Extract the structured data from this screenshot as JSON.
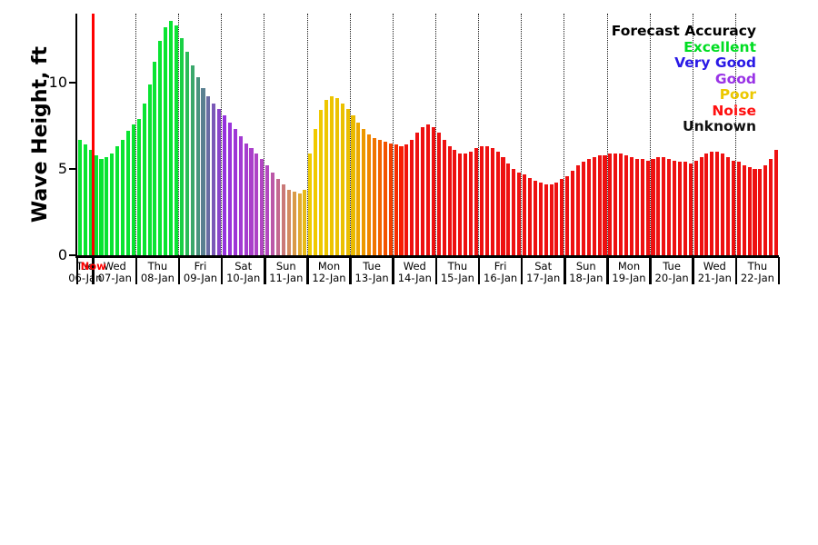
{
  "page": {
    "background": "#ffffff"
  },
  "chart_data": {
    "type": "bar",
    "title": "",
    "ylabel": "Wave Height, ft",
    "ylim": [
      0,
      14
    ],
    "yticks": [
      0,
      5,
      10
    ],
    "interval_hours": 3,
    "grid": {
      "day_separators": "dotted"
    },
    "now_line": {
      "label": "Now",
      "color": "#ff0000",
      "after_day_index": 0
    },
    "legend": {
      "title": "Forecast Accuracy",
      "position": "top-right",
      "title_color": "#000000",
      "entries": [
        {
          "label": "Excellent",
          "color": "#00dd22"
        },
        {
          "label": "Very Good",
          "color": "#2a1ae6"
        },
        {
          "label": "Good",
          "color": "#9933e6"
        },
        {
          "label": "Poor",
          "color": "#ecc800"
        },
        {
          "label": "Noise",
          "color": "#ff0f0f"
        },
        {
          "label": "Unknown",
          "color": "#111111"
        }
      ]
    },
    "days": [
      {
        "day": "Tue",
        "date": "06-Jan",
        "values": [
          6.7,
          6.4,
          6.1
        ],
        "colors": [
          "#0ae432",
          "#0ae432",
          "#0ae432"
        ]
      },
      {
        "day": "Wed",
        "date": "07-Jan",
        "values": [
          5.8,
          5.6,
          5.7,
          5.9,
          6.3,
          6.7,
          7.2,
          7.6
        ],
        "colors": [
          "#0ae432",
          "#0ae432",
          "#0ae432",
          "#0ae432",
          "#0ae432",
          "#0ae432",
          "#0ae432",
          "#0ae432"
        ]
      },
      {
        "day": "Thu",
        "date": "08-Jan",
        "values": [
          7.9,
          8.8,
          9.9,
          11.2,
          12.4,
          13.2,
          13.6,
          13.3
        ],
        "colors": [
          "#0ae432",
          "#0ae432",
          "#0ae432",
          "#0ae432",
          "#0ae432",
          "#0ae432",
          "#0ae432",
          "#0ae432"
        ]
      },
      {
        "day": "Fri",
        "date": "09-Jan",
        "values": [
          12.6,
          11.8,
          11.0,
          10.3,
          9.7,
          9.2,
          8.8,
          8.5
        ],
        "colors": [
          "#1ad045",
          "#2abc58",
          "#3aa86b",
          "#4a947e",
          "#5a8091",
          "#6a6ca4",
          "#7a58b7",
          "#8a44ca"
        ]
      },
      {
        "day": "Sat",
        "date": "10-Jan",
        "values": [
          8.1,
          7.7,
          7.3,
          6.9,
          6.5,
          6.2,
          5.9,
          5.6
        ],
        "colors": [
          "#9632dd",
          "#9a34da",
          "#9e37d6",
          "#a23ad2",
          "#a63dce",
          "#aa40ca",
          "#ae43c6",
          "#b246c2"
        ]
      },
      {
        "day": "Sun",
        "date": "11-Jan",
        "values": [
          5.2,
          4.8,
          4.4,
          4.1,
          3.8,
          3.7,
          3.6,
          3.8
        ],
        "colors": [
          "#b448c0",
          "#bb58a8",
          "#c36990",
          "#ca7978",
          "#d28a60",
          "#d99a48",
          "#e1ab30",
          "#e8bb18"
        ]
      },
      {
        "day": "Mon",
        "date": "12-Jan",
        "values": [
          5.9,
          7.3,
          8.4,
          9.0,
          9.2,
          9.1,
          8.8,
          8.5
        ],
        "colors": [
          "#f0cc00",
          "#f0ca00",
          "#efc800",
          "#eec600",
          "#edc400",
          "#ecc200",
          "#ebc000",
          "#eabe00"
        ]
      },
      {
        "day": "Tue",
        "date": "13-Jan",
        "values": [
          8.1,
          7.7,
          7.3,
          7.0,
          6.8,
          6.7,
          6.6,
          6.5
        ],
        "colors": [
          "#eaba00",
          "#eca900",
          "#ed9800",
          "#ef8600",
          "#f07500",
          "#f26400",
          "#f35300",
          "#f54100"
        ]
      },
      {
        "day": "Wed",
        "date": "14-Jan",
        "values": [
          6.4,
          6.3,
          6.4,
          6.7,
          7.1,
          7.4,
          7.6,
          7.4
        ],
        "colors": [
          "#f62e00",
          "#f71f05",
          "#f2140c",
          "#ee1111",
          "#ee1111",
          "#ee1111",
          "#ee1111",
          "#ee1111"
        ]
      },
      {
        "day": "Thu",
        "date": "15-Jan",
        "values": [
          7.1,
          6.7,
          6.3,
          6.1,
          5.9,
          5.9,
          6.0,
          6.2
        ],
        "colors": [
          "#ee1111",
          "#ee1111",
          "#ee1111",
          "#ee1111",
          "#ee1111",
          "#ee1111",
          "#ee1111",
          "#ee1111"
        ]
      },
      {
        "day": "Fri",
        "date": "16-Jan",
        "values": [
          6.3,
          6.3,
          6.2,
          6.0,
          5.7,
          5.3,
          5.0,
          4.8
        ],
        "colors": [
          "#ee1111",
          "#ee1111",
          "#ee1111",
          "#ee1111",
          "#ee1111",
          "#ee1111",
          "#ee1111",
          "#ee1111"
        ]
      },
      {
        "day": "Sat",
        "date": "17-Jan",
        "values": [
          4.7,
          4.5,
          4.3,
          4.2,
          4.1,
          4.1,
          4.2,
          4.4
        ],
        "colors": [
          "#ee1111",
          "#ee1111",
          "#ee1111",
          "#ee1111",
          "#ee1111",
          "#ee1111",
          "#ee1111",
          "#ee1111"
        ]
      },
      {
        "day": "Sun",
        "date": "18-Jan",
        "values": [
          4.6,
          4.9,
          5.2,
          5.4,
          5.6,
          5.7,
          5.8,
          5.8
        ],
        "colors": [
          "#ee1111",
          "#ee1111",
          "#ee1111",
          "#ee1111",
          "#ee1111",
          "#ee1111",
          "#ee1111",
          "#ee1111"
        ]
      },
      {
        "day": "Mon",
        "date": "19-Jan",
        "values": [
          5.9,
          5.9,
          5.9,
          5.8,
          5.7,
          5.6,
          5.6,
          5.5
        ],
        "colors": [
          "#ee1111",
          "#ee1111",
          "#ee1111",
          "#ee1111",
          "#ee1111",
          "#ee1111",
          "#ee1111",
          "#ee1111"
        ]
      },
      {
        "day": "Tue",
        "date": "20-Jan",
        "values": [
          5.6,
          5.7,
          5.7,
          5.6,
          5.5,
          5.4,
          5.4,
          5.3
        ],
        "colors": [
          "#ee1111",
          "#ee1111",
          "#ee1111",
          "#ee1111",
          "#ee1111",
          "#ee1111",
          "#ee1111",
          "#ee1111"
        ]
      },
      {
        "day": "Wed",
        "date": "21-Jan",
        "values": [
          5.5,
          5.7,
          5.9,
          6.0,
          6.0,
          5.9,
          5.7,
          5.5
        ],
        "colors": [
          "#ee1111",
          "#ee1111",
          "#ee1111",
          "#ee1111",
          "#ee1111",
          "#ee1111",
          "#ee1111",
          "#ee1111"
        ]
      },
      {
        "day": "Thu",
        "date": "22-Jan",
        "values": [
          5.4,
          5.2,
          5.1,
          5.0,
          5.0,
          5.2,
          5.6,
          6.1
        ],
        "colors": [
          "#ee1111",
          "#ee1111",
          "#ee1111",
          "#ee1111",
          "#ee1111",
          "#ee1111",
          "#ee1111",
          "#ee1111"
        ]
      }
    ]
  }
}
